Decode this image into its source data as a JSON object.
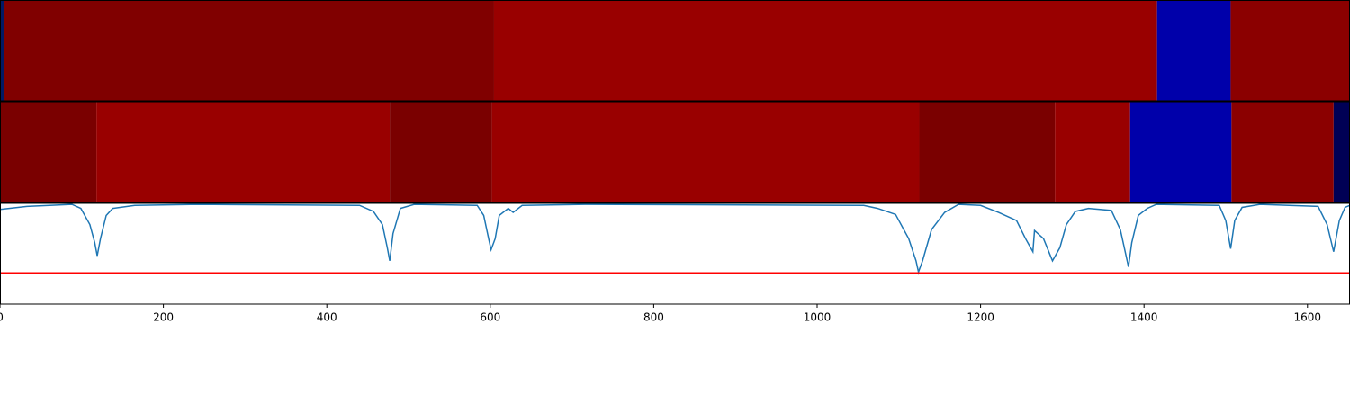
{
  "chart_data": {
    "type": "line",
    "xlim": [
      0,
      1652
    ],
    "ylim": [
      0,
      1
    ],
    "xticks": [
      0,
      200,
      400,
      600,
      800,
      1000,
      1200,
      1400,
      1600
    ],
    "strips": [
      {
        "edges": [
          0,
          5.5,
          604.6,
          1416,
          1506,
          1652
        ],
        "colors": [
          "#001a66",
          "#800000",
          "#990000",
          "#0000aa",
          "#8b0000"
        ]
      },
      {
        "edges": [
          0,
          118,
          477,
          602,
          1125,
          1291,
          1383,
          1507,
          1632,
          1652
        ],
        "colors": [
          "#7a0000",
          "#990000",
          "#7a0000",
          "#990000",
          "#7a0000",
          "#990000",
          "#0000aa",
          "#8b0000",
          "#000055"
        ]
      }
    ],
    "x": [
      0,
      33,
      88,
      99,
      110,
      116,
      119,
      123,
      130,
      138,
      165,
      242,
      440,
      457,
      468,
      474,
      477,
      481,
      490,
      507,
      584,
      592,
      598,
      601,
      606,
      611,
      622,
      628,
      639,
      716,
      1057,
      1074,
      1096,
      1112,
      1121,
      1124,
      1129,
      1140,
      1156,
      1173,
      1200,
      1222,
      1244,
      1255,
      1264,
      1266,
      1277,
      1288,
      1297,
      1305,
      1316,
      1332,
      1360,
      1371,
      1381,
      1385,
      1393,
      1404,
      1415,
      1492,
      1500,
      1506,
      1511,
      1520,
      1542,
      1613,
      1624,
      1632,
      1639,
      1646,
      1652
    ],
    "series": [
      {
        "color": "#1f77b4",
        "values": [
          0.94,
          0.97,
          0.99,
          0.95,
          0.79,
          0.61,
          0.48,
          0.65,
          0.88,
          0.95,
          0.98,
          0.99,
          0.98,
          0.92,
          0.79,
          0.56,
          0.43,
          0.7,
          0.95,
          0.99,
          0.98,
          0.88,
          0.65,
          0.54,
          0.65,
          0.88,
          0.95,
          0.91,
          0.98,
          0.99,
          0.98,
          0.95,
          0.89,
          0.65,
          0.43,
          0.32,
          0.43,
          0.74,
          0.91,
          0.99,
          0.98,
          0.91,
          0.83,
          0.65,
          0.52,
          0.73,
          0.65,
          0.43,
          0.56,
          0.79,
          0.92,
          0.95,
          0.93,
          0.74,
          0.37,
          0.61,
          0.88,
          0.95,
          0.99,
          0.98,
          0.83,
          0.55,
          0.83,
          0.96,
          0.99,
          0.97,
          0.79,
          0.52,
          0.83,
          0.96,
          0.98
        ]
      }
    ],
    "hline": {
      "value": 0.31,
      "color": "#ff0000"
    }
  }
}
